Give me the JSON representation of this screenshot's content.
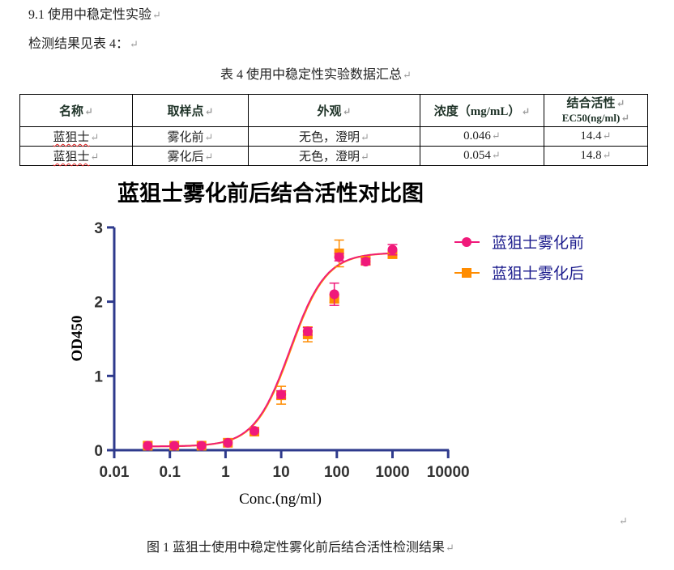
{
  "section": {
    "heading": "9.1  使用中稳定性实验",
    "intro": "检测结果见表 4："
  },
  "table": {
    "caption": "表 4  使用中稳定性实验数据汇总",
    "headers": [
      "名称",
      "取样点",
      "外观",
      "浓度（mg/mL）",
      "结合活性",
      "EC50(ng/ml)"
    ],
    "rows": [
      {
        "name": "蓝狙士",
        "sampling_point": "雾化前",
        "appearance": "无色，澄明",
        "concentration": "0.046",
        "ec50": "14.4"
      },
      {
        "name": "蓝狙士",
        "sampling_point": "雾化后",
        "appearance": "无色，澄明",
        "concentration": "0.054",
        "ec50": "14.8"
      }
    ]
  },
  "figure": {
    "caption": "图 1  蓝狙士使用中稳定性雾化前后结合活性检测结果"
  },
  "chart_data": {
    "type": "scatter",
    "title": "蓝狙士雾化前后结合活性对比图",
    "xlabel": "Conc.(ng/ml)",
    "ylabel": "OD450",
    "xscale": "log",
    "xlim": [
      0.01,
      10000
    ],
    "ylim": [
      0,
      3
    ],
    "x_ticks": [
      "0.01",
      "0.1",
      "1",
      "10",
      "100",
      "1000",
      "10000"
    ],
    "y_ticks": [
      "0",
      "1",
      "2",
      "3"
    ],
    "grid": false,
    "legend_position": "upper right",
    "x": [
      0.04,
      0.12,
      0.37,
      1.1,
      3.3,
      10,
      30,
      90,
      110,
      330,
      1000
    ],
    "series": [
      {
        "name": "蓝狙士雾化前",
        "color": "#f0197a",
        "marker": "circle",
        "values": [
          0.06,
          0.06,
          0.06,
          0.1,
          0.26,
          0.75,
          1.6,
          2.1,
          2.6,
          2.54,
          2.7
        ],
        "errors": [
          0.02,
          0.02,
          0.02,
          0.02,
          0.03,
          0.05,
          0.05,
          0.15,
          0.05,
          0.04,
          0.07
        ]
      },
      {
        "name": "蓝狙士雾化后",
        "color": "#ff8c00",
        "marker": "square",
        "values": [
          0.06,
          0.06,
          0.06,
          0.1,
          0.25,
          0.74,
          1.56,
          2.04,
          2.65,
          2.55,
          2.64
        ],
        "errors": [
          0.02,
          0.02,
          0.02,
          0.02,
          0.03,
          0.12,
          0.1,
          0.05,
          0.18,
          0.04,
          0.05
        ]
      }
    ],
    "fit": {
      "bottom": 0.05,
      "top": 2.66,
      "ec50": 14.6,
      "hill": 1.35
    }
  }
}
